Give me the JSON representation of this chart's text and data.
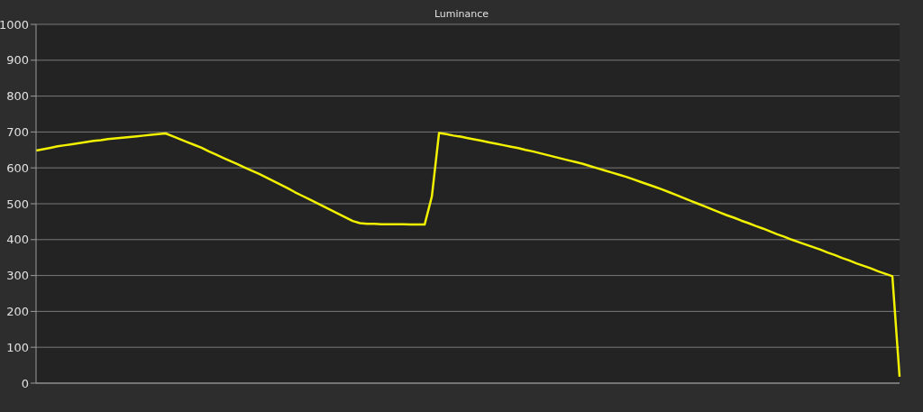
{
  "chart_data": {
    "type": "line",
    "title": "Luminance",
    "categories": [
      null,
      null,
      null,
      null,
      null,
      null,
      null,
      null,
      null,
      null,
      null,
      null,
      null,
      null,
      null,
      null,
      null,
      null,
      null,
      null,
      null,
      null,
      null,
      null,
      null,
      null,
      null,
      null,
      null,
      null,
      null,
      null,
      null,
      null,
      null,
      null,
      null,
      null,
      null,
      null,
      null,
      null,
      null,
      null,
      null,
      null,
      null,
      null,
      null,
      null,
      null,
      null,
      null,
      null,
      null,
      null,
      null,
      null,
      null,
      null,
      null,
      null,
      null,
      null,
      null,
      null,
      null,
      null,
      null,
      null,
      null,
      null,
      null,
      null,
      null,
      null,
      null,
      null,
      null,
      null,
      null,
      null,
      null,
      null,
      null,
      null,
      null,
      null,
      null,
      null,
      null,
      null,
      null,
      null,
      null,
      null,
      null,
      null,
      null,
      null,
      null,
      null,
      null,
      null,
      null,
      null,
      null,
      null,
      null,
      null,
      null,
      null,
      null,
      null,
      null,
      null,
      null,
      null,
      null,
      null,
      null
    ],
    "series": [
      {
        "color": "#f2f200",
        "values": [
          648,
          652,
          656,
          660,
          663,
          666,
          669,
          672,
          675,
          677,
          680,
          682,
          684,
          686,
          688,
          690,
          692,
          694,
          696,
          688,
          680,
          672,
          664,
          656,
          646,
          637,
          628,
          619,
          610,
          601,
          592,
          583,
          573,
          563,
          553,
          543,
          532,
          522,
          512,
          502,
          492,
          482,
          472,
          462,
          452,
          446,
          444,
          444,
          443,
          443,
          443,
          443,
          442,
          442,
          442,
          520,
          697,
          694,
          690,
          687,
          683,
          679,
          675,
          671,
          667,
          663,
          659,
          655,
          650,
          646,
          641,
          636,
          631,
          626,
          621,
          616,
          611,
          605,
          599,
          593,
          587,
          581,
          575,
          568,
          561,
          554,
          547,
          540,
          532,
          524,
          516,
          508,
          500,
          492,
          484,
          476,
          468,
          461,
          453,
          446,
          438,
          431,
          423,
          415,
          408,
          400,
          393,
          386,
          379,
          372,
          364,
          357,
          349,
          342,
          334,
          327,
          320,
          312,
          305,
          298,
          18
        ]
      }
    ],
    "ylim": [
      0,
      1000
    ],
    "yticks": [
      0,
      100,
      200,
      300,
      400,
      500,
      600,
      700,
      800,
      900,
      1000
    ],
    "grid": "y",
    "tick_labels": "y"
  }
}
